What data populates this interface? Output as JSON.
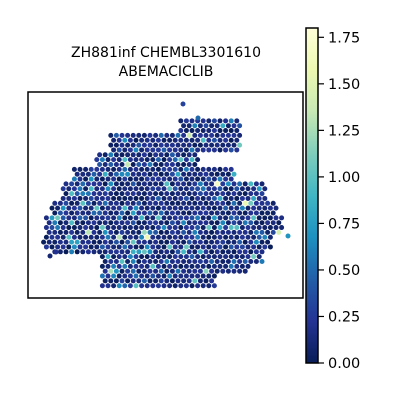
{
  "chart_data": {
    "type": "scatter",
    "title_line1": "ZH881inf CHEMBL3301610",
    "title_line2": "ABEMACICLIB",
    "xlabel": "",
    "ylabel": "",
    "axes_ticks": false,
    "colormap": "YlGnBu",
    "colorbar": {
      "vmin": 0.0,
      "vmax": 1.8,
      "ticks": [
        "0.00",
        "0.25",
        "0.50",
        "0.75",
        "1.00",
        "1.25",
        "1.50",
        "1.75"
      ],
      "tick_values": [
        0.0,
        0.25,
        0.5,
        0.75,
        1.0,
        1.25,
        1.5,
        1.75
      ]
    },
    "colorbar_stops": [
      "#081d58",
      "#253494",
      "#225ea8",
      "#1d91c0",
      "#41b6c4",
      "#7fcdbb",
      "#c7e9b4",
      "#edf8b1",
      "#ffffd9"
    ],
    "background_value": 0.0,
    "n_spots": "~1500"
  }
}
